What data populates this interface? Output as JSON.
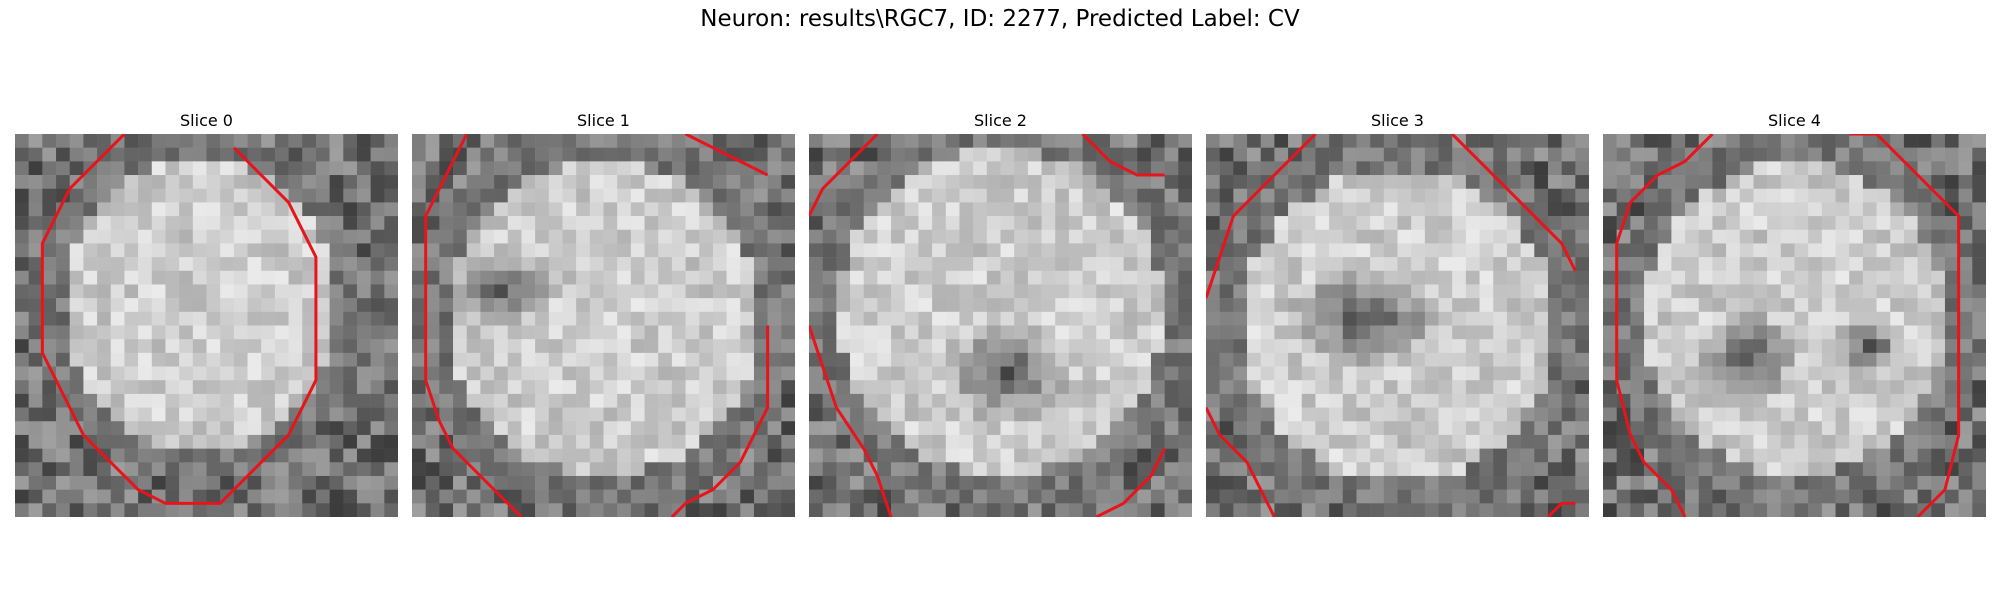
{
  "figure": {
    "title": "Neuron: results\\RGC7, ID: 2277, Predicted Label: CV"
  },
  "contour_color": "#e8141c",
  "slices": [
    {
      "title": "Slice 0",
      "cell_center": [
        13.5,
        12.5
      ],
      "cell_radius": [
        11.5,
        12.5
      ],
      "dark_core": [],
      "contour": [
        [
          8,
          0
        ],
        [
          6,
          2
        ],
        [
          4,
          4
        ],
        [
          3,
          6
        ],
        [
          2,
          8
        ],
        [
          2,
          12
        ],
        [
          2,
          16
        ],
        [
          3,
          18
        ],
        [
          4,
          20
        ],
        [
          5,
          22
        ],
        [
          7,
          24
        ],
        [
          9,
          26
        ],
        [
          11,
          27
        ],
        [
          13,
          27
        ],
        [
          15,
          27
        ],
        [
          16,
          26
        ],
        [
          18,
          24
        ],
        [
          20,
          22
        ],
        [
          21,
          20
        ],
        [
          22,
          18
        ],
        [
          22,
          15
        ],
        [
          22,
          12
        ],
        [
          22,
          9
        ],
        [
          21,
          7
        ],
        [
          20,
          5
        ],
        [
          18,
          3
        ],
        [
          17,
          2
        ],
        [
          16,
          1
        ]
      ]
    },
    {
      "title": "Slice 1",
      "cell_center": [
        14.0,
        13.5
      ],
      "cell_radius": [
        13.5,
        13.5
      ],
      "dark_core": [
        [
          6,
          11,
          3,
          2
        ]
      ],
      "contour": [
        [
          4,
          0
        ],
        [
          3,
          2
        ],
        [
          2,
          4
        ],
        [
          1,
          6
        ],
        [
          1,
          10
        ],
        [
          1,
          14
        ],
        [
          1,
          18
        ],
        [
          2,
          21
        ],
        [
          3,
          23
        ],
        [
          5,
          25
        ],
        [
          7,
          27
        ],
        [
          8,
          28
        ]
      ],
      "contour2": [
        [
          19,
          28
        ],
        [
          20,
          27
        ],
        [
          22,
          26
        ],
        [
          24,
          24
        ],
        [
          25,
          22
        ],
        [
          26,
          20
        ],
        [
          26,
          17
        ],
        [
          26,
          14
        ]
      ],
      "contour3": [
        [
          20,
          0
        ],
        [
          22,
          1
        ],
        [
          24,
          2
        ],
        [
          26,
          3
        ]
      ]
    },
    {
      "title": "Slice 2",
      "cell_center": [
        14.0,
        13.0
      ],
      "cell_radius": [
        14.0,
        14.0
      ],
      "dark_core": [
        [
          14,
          17,
          4,
          3
        ]
      ],
      "contour": [
        [
          5,
          0
        ],
        [
          3,
          2
        ],
        [
          1,
          4
        ],
        [
          0,
          6
        ]
      ],
      "contour2": [
        [
          0,
          14
        ],
        [
          1,
          17
        ],
        [
          2,
          20
        ],
        [
          4,
          23
        ],
        [
          5,
          25
        ],
        [
          6,
          28
        ]
      ],
      "contour3": [
        [
          20,
          0
        ],
        [
          22,
          2
        ],
        [
          24,
          3
        ],
        [
          26,
          3
        ]
      ],
      "contour4": [
        [
          21,
          28
        ],
        [
          23,
          27
        ],
        [
          25,
          25
        ],
        [
          26,
          23
        ]
      ]
    },
    {
      "title": "Slice 3",
      "cell_center": [
        14.0,
        14.0
      ],
      "cell_radius": [
        13.5,
        13.5
      ],
      "dark_core": [
        [
          11,
          13,
          5,
          3
        ]
      ],
      "contour": [
        [
          8,
          0
        ],
        [
          6,
          2
        ],
        [
          4,
          4
        ],
        [
          2,
          6
        ],
        [
          1,
          9
        ],
        [
          0,
          12
        ]
      ],
      "contour2": [
        [
          0,
          20
        ],
        [
          1,
          22
        ],
        [
          3,
          24
        ],
        [
          4,
          26
        ],
        [
          5,
          28
        ]
      ],
      "contour3": [
        [
          18,
          0
        ],
        [
          20,
          2
        ],
        [
          22,
          4
        ],
        [
          24,
          6
        ],
        [
          26,
          8
        ],
        [
          27,
          10
        ]
      ],
      "contour4": [
        [
          25,
          28
        ],
        [
          26,
          27
        ],
        [
          27,
          27
        ]
      ]
    },
    {
      "title": "Slice 4",
      "cell_center": [
        14.0,
        13.5
      ],
      "cell_radius": [
        13.0,
        13.5
      ],
      "dark_core": [
        [
          10,
          16,
          3,
          3
        ],
        [
          19,
          15,
          2,
          2
        ]
      ],
      "contour": [
        [
          8,
          0
        ],
        [
          6,
          2
        ],
        [
          4,
          3
        ],
        [
          2,
          5
        ],
        [
          1,
          8
        ],
        [
          1,
          10
        ],
        [
          1,
          14
        ],
        [
          1,
          18
        ],
        [
          2,
          22
        ],
        [
          3,
          24
        ],
        [
          5,
          26
        ],
        [
          6,
          28
        ]
      ],
      "contour2": [
        [
          18,
          0
        ],
        [
          20,
          0
        ],
        [
          22,
          2
        ],
        [
          24,
          4
        ],
        [
          26,
          6
        ],
        [
          26,
          10
        ],
        [
          26,
          14
        ],
        [
          26,
          18
        ],
        [
          26,
          22
        ],
        [
          25,
          26
        ],
        [
          24,
          27
        ],
        [
          23,
          28
        ]
      ]
    }
  ]
}
